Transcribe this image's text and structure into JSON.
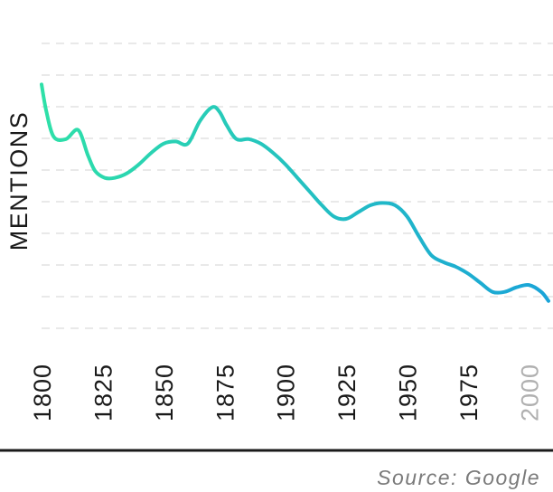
{
  "chart_data": {
    "type": "line",
    "title": "",
    "ylabel": "MENTIONS",
    "xlabel": "",
    "x_ticks": [
      "1800",
      "1825",
      "1850",
      "1875",
      "1900",
      "1925",
      "1950",
      "1975",
      "2000"
    ],
    "highlight_tick": "2000",
    "grid": true,
    "y_ticks_shown": false,
    "series": [
      {
        "x": [
          1800,
          1802,
          1805,
          1810,
          1815,
          1819,
          1822,
          1826,
          1830,
          1835,
          1840,
          1845,
          1850,
          1855,
          1860,
          1865,
          1870,
          1873,
          1876,
          1880,
          1885,
          1890,
          1895,
          1900,
          1905,
          1910,
          1915,
          1920,
          1925,
          1930,
          1935,
          1940,
          1945,
          1950,
          1955,
          1960,
          1965,
          1970,
          1975,
          1980,
          1985,
          1990,
          1995,
          2000,
          2005,
          2008
        ],
        "y": [
          82,
          70,
          59,
          58,
          62,
          51,
          44,
          41,
          41,
          43,
          47,
          52,
          56,
          57,
          56,
          66,
          72,
          70,
          64,
          58,
          58,
          56,
          52,
          47,
          41,
          35,
          29,
          24,
          23,
          26,
          29,
          30,
          29,
          24,
          15,
          7,
          4,
          2,
          -1,
          -5,
          -9,
          -9,
          -7,
          -6,
          -9,
          -13
        ]
      }
    ],
    "ylim": [
      -25,
      100
    ],
    "colors": {
      "line_start": "#2ee0a8",
      "line_end": "#1aa4d8",
      "grid": "#e2e2e2",
      "tick": "#1a1a1a",
      "tick_highlight": "#b0b0b0",
      "baseline": "#1a1a1a"
    }
  },
  "source": "Source: Google"
}
